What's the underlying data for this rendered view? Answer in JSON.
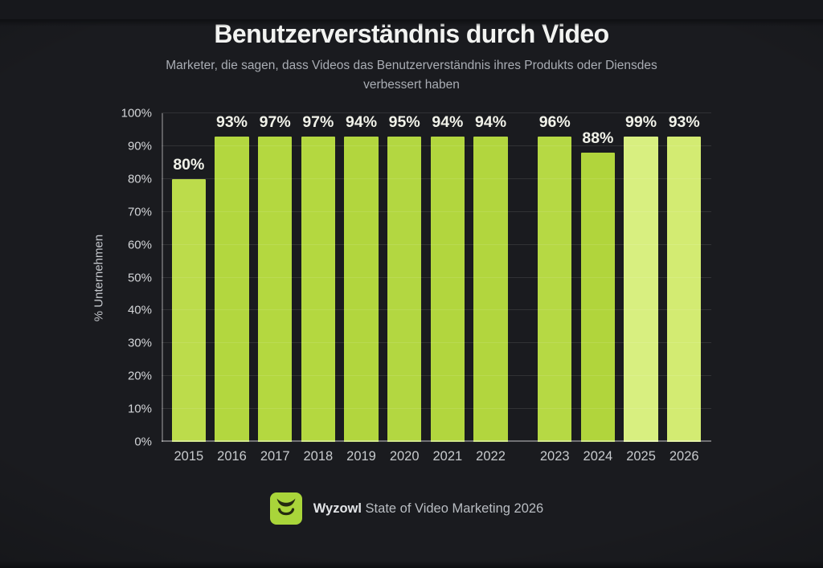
{
  "title": "Benutzerverständnis durch Video",
  "subtitle": {
    "line1": "Marketer, die sagen, dass Videos das Benutzerverständnis ihres Produkts oder Diensdes",
    "line2": "verbessert haben"
  },
  "chart_data": {
    "type": "bar",
    "title": "Benutzerverständnis durch Video",
    "subtitle": "Marketer, die sagen, dass Videos das Benutzerverständnis ihres Produkts oder Diensdes verbessert haben",
    "xlabel": "",
    "ylabel": "% Unternehmen",
    "ylim": [
      0,
      100
    ],
    "grid": true,
    "legend": "none",
    "y_ticks": [
      "0%",
      "10%",
      "20%",
      "30%",
      "40%",
      "50%",
      "60%",
      "70%",
      "80%",
      "90%",
      "100%"
    ],
    "categories": [
      "2015",
      "2016",
      "2017",
      "2018",
      "2019",
      "2020",
      "2021",
      "2022",
      "2023",
      "2024",
      "2025",
      "2026"
    ],
    "values": [
      80,
      93,
      97,
      97,
      94,
      95,
      94,
      94,
      96,
      88,
      99,
      93
    ],
    "value_labels": [
      "80%",
      "93%",
      "97%",
      "97%",
      "94%",
      "95%",
      "94%",
      "94%",
      "96%",
      "88%",
      "99%",
      "93%"
    ],
    "gap_after_index": 7,
    "bar_colors": [
      "#bcdc4b",
      "#b3d73f",
      "#b4d840",
      "#b4d840",
      "#b2d63e",
      "#b3d741",
      "#b2d63e",
      "#b2d63e",
      "#b6d944",
      "#b1d53c",
      "#d8ef80",
      "#d3eb72"
    ]
  },
  "footer": {
    "brand": "Wyzowl",
    "source": "State of Video Marketing 2026",
    "logo_icon": "wyzowl-owl",
    "logo_color": "#a9d53a",
    "logo_glyph_color": "#242a10"
  },
  "colors": {
    "background": "#17181c",
    "title_text": "#f2f3f1",
    "subtitle_text": "#a9adb4",
    "bar_green": "#b3d740",
    "bar_green_light": "#d6ee7a",
    "value_label_text": "#f1f2e9",
    "axis_text": "#c7cacd",
    "gridline": "rgba(255,255,255,0.10)"
  }
}
